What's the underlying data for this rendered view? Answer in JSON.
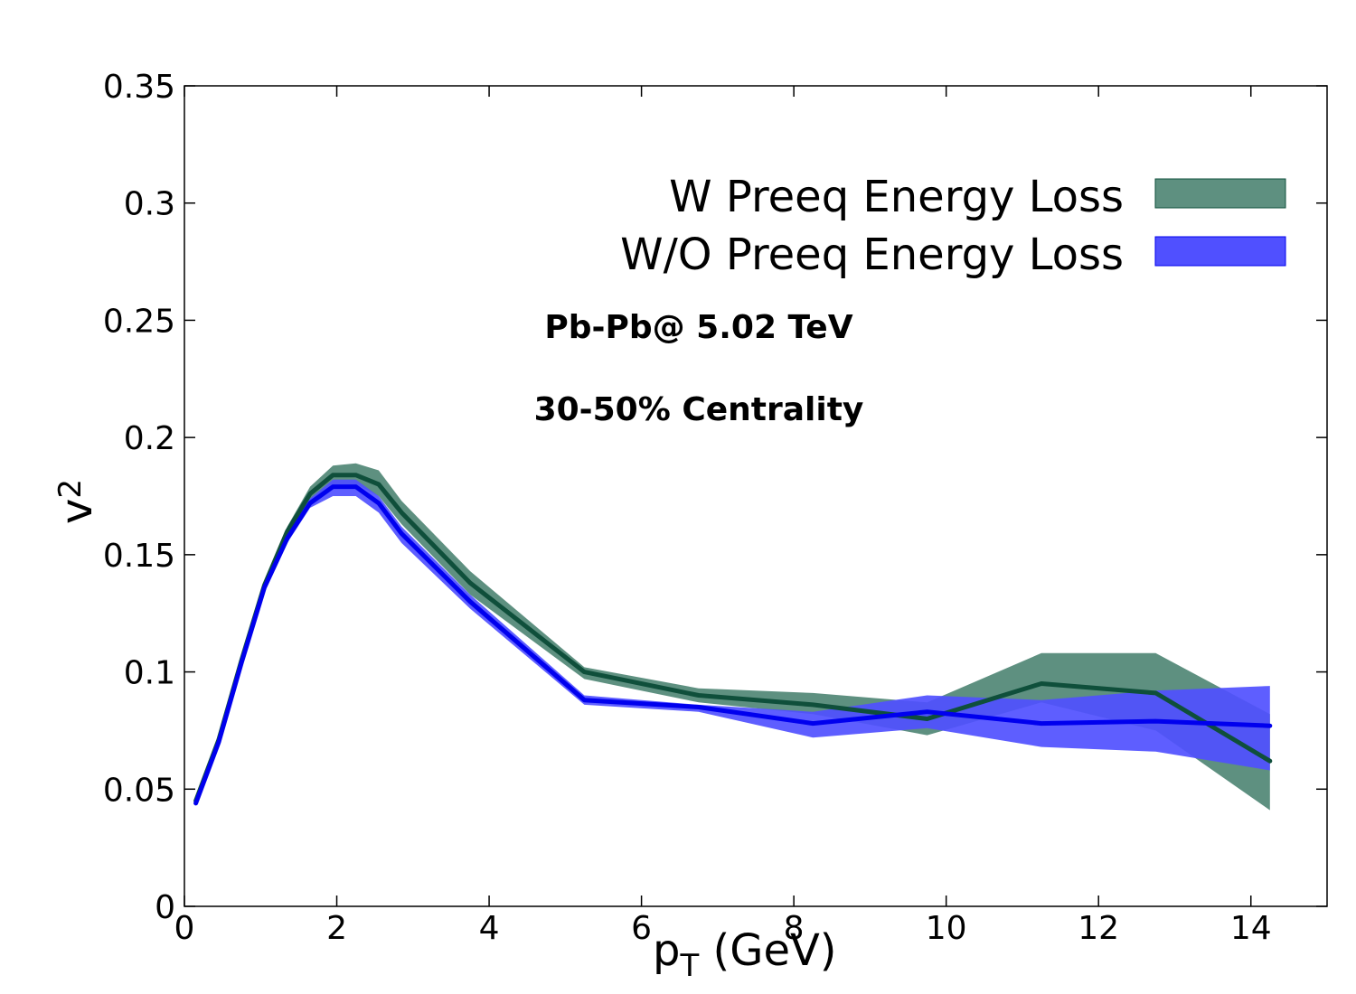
{
  "chart_data": {
    "type": "line",
    "title": "",
    "xlabel": {
      "main": "p",
      "sub": "T",
      "unit": "(GeV)"
    },
    "ylabel": {
      "main": "v",
      "sub": "2"
    },
    "xlim": [
      0,
      15
    ],
    "ylim": [
      0,
      0.35
    ],
    "xticks": [
      0,
      2,
      4,
      6,
      8,
      10,
      12,
      14
    ],
    "xtick_labels": [
      "0",
      "2",
      "4",
      "6",
      "8",
      "10",
      "12",
      "14"
    ],
    "yticks": [
      0,
      0.05,
      0.1,
      0.15,
      0.2,
      0.25,
      0.3,
      0.35
    ],
    "ytick_labels": [
      "0",
      "0.05",
      "0.1",
      "0.15",
      "0.2",
      "0.25",
      "0.3",
      "0.35"
    ],
    "grid": false,
    "legend_position": "top-right",
    "annotations": [
      "Pb-Pb@ 5.02 TeV",
      "30-50% Centrality"
    ],
    "series": [
      {
        "name": "W Preeq Energy Loss",
        "band_color": "#5e9080",
        "line_color": "#0f4f3b",
        "x": [
          0.15,
          0.45,
          0.75,
          1.05,
          1.35,
          1.65,
          1.95,
          2.25,
          2.55,
          2.85,
          3.75,
          5.25,
          6.75,
          8.25,
          9.75,
          11.25,
          12.75,
          14.25
        ],
        "y": [
          0.045,
          0.071,
          0.105,
          0.137,
          0.16,
          0.176,
          0.184,
          0.184,
          0.18,
          0.168,
          0.138,
          0.1,
          0.09,
          0.086,
          0.08,
          0.095,
          0.091,
          0.062
        ],
        "upper": [
          0.046,
          0.072,
          0.106,
          0.138,
          0.162,
          0.179,
          0.188,
          0.189,
          0.186,
          0.173,
          0.143,
          0.102,
          0.093,
          0.091,
          0.087,
          0.108,
          0.108,
          0.082
        ],
        "lower": [
          0.044,
          0.07,
          0.104,
          0.136,
          0.158,
          0.173,
          0.18,
          0.18,
          0.175,
          0.163,
          0.133,
          0.097,
          0.087,
          0.082,
          0.073,
          0.087,
          0.075,
          0.041
        ]
      },
      {
        "name": "W/O Preeq Energy Loss",
        "band_color": "#5050ff",
        "line_color": "#0000ee",
        "x": [
          0.15,
          0.45,
          0.75,
          1.05,
          1.35,
          1.65,
          1.95,
          2.25,
          2.55,
          2.85,
          3.75,
          5.25,
          6.75,
          8.25,
          9.75,
          11.25,
          12.75,
          14.25
        ],
        "y": [
          0.044,
          0.07,
          0.104,
          0.136,
          0.157,
          0.172,
          0.179,
          0.179,
          0.172,
          0.159,
          0.13,
          0.088,
          0.085,
          0.078,
          0.083,
          0.078,
          0.079,
          0.077
        ],
        "upper": [
          0.045,
          0.071,
          0.105,
          0.137,
          0.159,
          0.174,
          0.182,
          0.182,
          0.175,
          0.162,
          0.133,
          0.09,
          0.086,
          0.083,
          0.09,
          0.088,
          0.092,
          0.094
        ],
        "lower": [
          0.043,
          0.069,
          0.103,
          0.135,
          0.155,
          0.17,
          0.175,
          0.175,
          0.168,
          0.155,
          0.127,
          0.086,
          0.083,
          0.072,
          0.076,
          0.068,
          0.066,
          0.058
        ]
      }
    ]
  }
}
